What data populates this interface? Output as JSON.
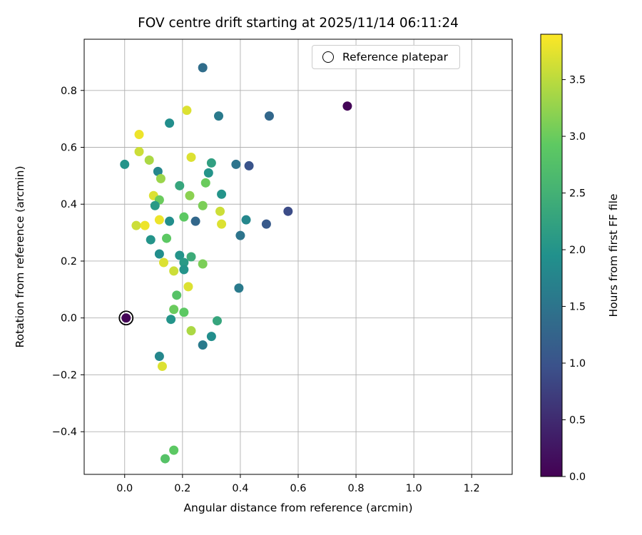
{
  "chart_data": {
    "type": "scatter",
    "title": "FOV centre drift starting at 2025/11/14 06:11:24",
    "xlabel": "Angular distance from reference (arcmin)",
    "ylabel": "Rotation from reference (arcmin)",
    "xlim": [
      -0.14,
      1.34
    ],
    "ylim": [
      -0.55,
      0.98
    ],
    "xticks": [
      0.0,
      0.2,
      0.4,
      0.6,
      0.8,
      1.0,
      1.2
    ],
    "yticks": [
      -0.4,
      -0.2,
      0.0,
      0.2,
      0.4,
      0.6,
      0.8
    ],
    "grid": true,
    "legend": {
      "position": "upper right",
      "entries": [
        "Reference platepar"
      ]
    },
    "colorbar": {
      "label": "Hours from first FF file",
      "vmin": 0.0,
      "vmax": 3.9,
      "ticks": [
        0.0,
        0.5,
        1.0,
        1.5,
        2.0,
        2.5,
        3.0,
        3.5
      ],
      "colormap": "viridis"
    },
    "reference_point": [
      0.005,
      0.0
    ],
    "points": [
      [
        0.77,
        0.745,
        0.05
      ],
      [
        0.005,
        0.0,
        0.05
      ],
      [
        0.27,
        0.88,
        1.4
      ],
      [
        0.215,
        0.73,
        3.7
      ],
      [
        0.325,
        0.71,
        1.6
      ],
      [
        0.5,
        0.71,
        1.3
      ],
      [
        0.155,
        0.685,
        1.9
      ],
      [
        0.05,
        0.645,
        3.8
      ],
      [
        0.05,
        0.585,
        3.6
      ],
      [
        0.085,
        0.555,
        3.4
      ],
      [
        0.0,
        0.54,
        2.0
      ],
      [
        0.3,
        0.545,
        2.2
      ],
      [
        0.385,
        0.54,
        1.5
      ],
      [
        0.43,
        0.535,
        1.0
      ],
      [
        0.23,
        0.565,
        3.7
      ],
      [
        0.115,
        0.515,
        1.8
      ],
      [
        0.125,
        0.49,
        3.3
      ],
      [
        0.29,
        0.51,
        2.0
      ],
      [
        0.28,
        0.475,
        3.0
      ],
      [
        0.19,
        0.465,
        2.3
      ],
      [
        0.1,
        0.43,
        3.7
      ],
      [
        0.12,
        0.415,
        3.0
      ],
      [
        0.225,
        0.43,
        3.2
      ],
      [
        0.335,
        0.435,
        2.0
      ],
      [
        0.105,
        0.395,
        2.1
      ],
      [
        0.27,
        0.395,
        3.1
      ],
      [
        0.565,
        0.375,
        0.9
      ],
      [
        0.12,
        0.345,
        3.8
      ],
      [
        0.155,
        0.34,
        1.9
      ],
      [
        0.205,
        0.355,
        2.9
      ],
      [
        0.245,
        0.34,
        1.3
      ],
      [
        0.33,
        0.375,
        3.6
      ],
      [
        0.335,
        0.33,
        3.7
      ],
      [
        0.42,
        0.345,
        1.8
      ],
      [
        0.49,
        0.33,
        1.1
      ],
      [
        0.04,
        0.325,
        3.6
      ],
      [
        0.07,
        0.325,
        3.8
      ],
      [
        0.09,
        0.275,
        2.0
      ],
      [
        0.145,
        0.28,
        2.9
      ],
      [
        0.4,
        0.29,
        1.5
      ],
      [
        0.12,
        0.225,
        1.9
      ],
      [
        0.19,
        0.22,
        2.0
      ],
      [
        0.23,
        0.215,
        2.4
      ],
      [
        0.135,
        0.195,
        3.7
      ],
      [
        0.205,
        0.195,
        2.1
      ],
      [
        0.27,
        0.19,
        3.1
      ],
      [
        0.17,
        0.165,
        3.6
      ],
      [
        0.205,
        0.17,
        2.0
      ],
      [
        0.395,
        0.105,
        1.6
      ],
      [
        0.22,
        0.11,
        3.7
      ],
      [
        0.18,
        0.08,
        2.8
      ],
      [
        0.17,
        0.03,
        3.0
      ],
      [
        0.205,
        0.02,
        2.9
      ],
      [
        0.16,
        -0.005,
        2.0
      ],
      [
        0.32,
        -0.01,
        2.3
      ],
      [
        0.23,
        -0.045,
        3.4
      ],
      [
        0.3,
        -0.065,
        1.9
      ],
      [
        0.27,
        -0.095,
        1.6
      ],
      [
        0.12,
        -0.135,
        1.8
      ],
      [
        0.13,
        -0.17,
        3.7
      ],
      [
        0.17,
        -0.465,
        2.9
      ],
      [
        0.14,
        -0.495,
        2.8
      ]
    ]
  }
}
